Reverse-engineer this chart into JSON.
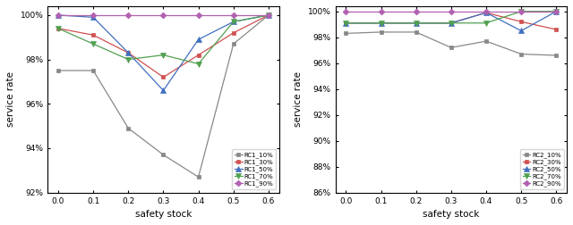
{
  "x": [
    0.0,
    0.1,
    0.2,
    0.3,
    0.4,
    0.5,
    0.6
  ],
  "RC1_10": [
    97.5,
    97.5,
    94.9,
    93.7,
    92.7,
    98.7,
    100.0
  ],
  "RC1_30": [
    99.4,
    99.1,
    98.3,
    97.2,
    98.2,
    99.2,
    100.0
  ],
  "RC1_50": [
    100.0,
    99.9,
    98.3,
    96.6,
    98.9,
    99.7,
    100.0
  ],
  "RC1_70": [
    99.4,
    98.7,
    98.0,
    98.2,
    97.8,
    99.7,
    100.0
  ],
  "RC1_90": [
    100.0,
    100.0,
    100.0,
    100.0,
    100.0,
    100.0,
    100.0
  ],
  "RC2_10": [
    98.3,
    98.4,
    98.4,
    97.2,
    97.7,
    96.7,
    96.6
  ],
  "RC2_30": [
    99.1,
    99.1,
    99.1,
    99.1,
    99.9,
    99.2,
    98.6
  ],
  "RC2_50": [
    99.1,
    99.1,
    99.1,
    99.1,
    99.9,
    98.5,
    100.0
  ],
  "RC2_70": [
    99.1,
    99.1,
    99.1,
    99.1,
    99.1,
    100.0,
    100.0
  ],
  "RC2_90": [
    100.0,
    100.0,
    100.0,
    100.0,
    100.0,
    100.0,
    100.0
  ],
  "colors": [
    "#888888",
    "#d05050",
    "#4070c0",
    "#50a050",
    "#b060b0"
  ],
  "xlabel": "safety stock",
  "ylabel": "service rate",
  "ylim1": [
    92.0,
    100.4
  ],
  "ylim2": [
    86.0,
    100.4
  ],
  "yticks1": [
    92,
    94,
    96,
    98,
    100
  ],
  "yticks2": [
    86,
    88,
    90,
    92,
    94,
    96,
    98,
    100
  ],
  "legend1": [
    "RC1_10%",
    "RC1_30%",
    "RC1_50%",
    "RC1_70%",
    "RC1_90%"
  ],
  "legend2": [
    "RC2_10%",
    "RC2_30%",
    "RC2_50%",
    "RC2_70%",
    "RC2_90%"
  ]
}
